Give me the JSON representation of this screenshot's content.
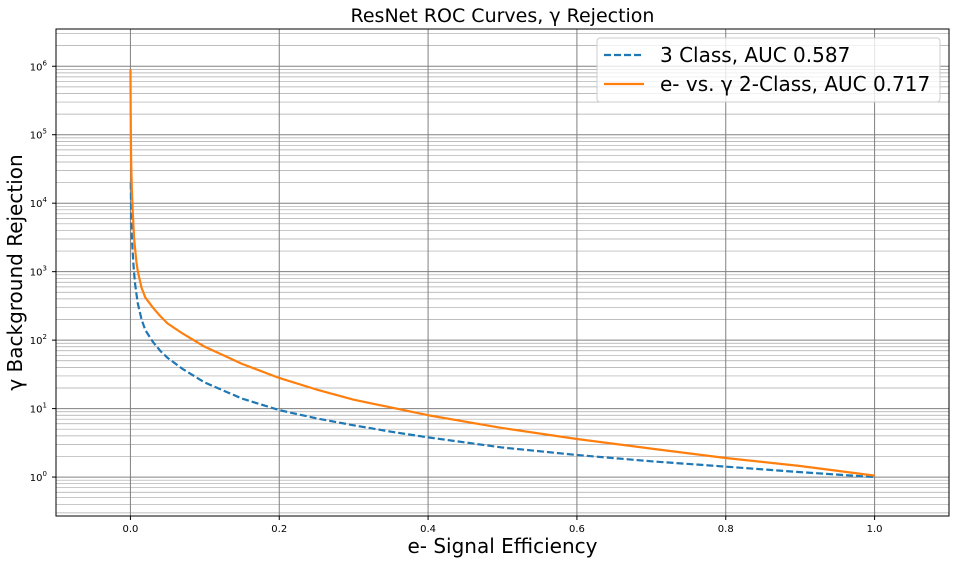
{
  "chart_data": {
    "type": "line",
    "title": "ResNet ROC Curves, γ Rejection",
    "xlabel": "e- Signal Efficiency",
    "ylabel": "γ Background Rejection",
    "xlim": [
      -0.1,
      1.1
    ],
    "ylim": [
      0.27,
      3500000
    ],
    "yscale": "log",
    "grid": true,
    "legend_position": "top-right",
    "x_ticks": [
      {
        "value": 0.0,
        "label": "0.0"
      },
      {
        "value": 0.2,
        "label": "0.2"
      },
      {
        "value": 0.4,
        "label": "0.4"
      },
      {
        "value": 0.6,
        "label": "0.6"
      },
      {
        "value": 0.8,
        "label": "0.8"
      },
      {
        "value": 1.0,
        "label": "1.0"
      }
    ],
    "y_ticks": [
      {
        "value": 1,
        "base": "10",
        "exp": "0"
      },
      {
        "value": 10,
        "base": "10",
        "exp": "1"
      },
      {
        "value": 100,
        "base": "10",
        "exp": "2"
      },
      {
        "value": 1000,
        "base": "10",
        "exp": "3"
      },
      {
        "value": 10000,
        "base": "10",
        "exp": "4"
      },
      {
        "value": 100000,
        "base": "10",
        "exp": "5"
      },
      {
        "value": 1000000,
        "base": "10",
        "exp": "6"
      }
    ],
    "series": [
      {
        "name": "3 Class, AUC 0.587",
        "color": "#1f77b4",
        "dash": "dashed",
        "points": [
          [
            0.0005,
            20000
          ],
          [
            0.001,
            8000
          ],
          [
            0.002,
            3000
          ],
          [
            0.004,
            1300
          ],
          [
            0.006,
            700
          ],
          [
            0.008,
            480
          ],
          [
            0.01,
            340
          ],
          [
            0.015,
            200
          ],
          [
            0.02,
            140
          ],
          [
            0.03,
            95
          ],
          [
            0.04,
            70
          ],
          [
            0.05,
            55
          ],
          [
            0.07,
            38
          ],
          [
            0.1,
            24
          ],
          [
            0.15,
            14
          ],
          [
            0.2,
            9.5
          ],
          [
            0.25,
            7.2
          ],
          [
            0.3,
            5.7
          ],
          [
            0.35,
            4.6
          ],
          [
            0.4,
            3.8
          ],
          [
            0.5,
            2.7
          ],
          [
            0.6,
            2.1
          ],
          [
            0.7,
            1.7
          ],
          [
            0.8,
            1.42
          ],
          [
            0.9,
            1.18
          ],
          [
            1.0,
            1.0
          ]
        ]
      },
      {
        "name": "e- vs. γ 2-Class, AUC 0.717",
        "color": "#ff7f0e",
        "dash": "solid",
        "points": [
          [
            0.0001,
            900000
          ],
          [
            0.0003,
            300000
          ],
          [
            0.0006,
            100000
          ],
          [
            0.001,
            40000
          ],
          [
            0.002,
            15000
          ],
          [
            0.003,
            8000
          ],
          [
            0.005,
            3000
          ],
          [
            0.008,
            1400
          ],
          [
            0.01,
            1000
          ],
          [
            0.015,
            580
          ],
          [
            0.02,
            420
          ],
          [
            0.03,
            300
          ],
          [
            0.04,
            225
          ],
          [
            0.05,
            175
          ],
          [
            0.07,
            125
          ],
          [
            0.1,
            80
          ],
          [
            0.15,
            45
          ],
          [
            0.2,
            28
          ],
          [
            0.25,
            19
          ],
          [
            0.3,
            13.5
          ],
          [
            0.4,
            8
          ],
          [
            0.5,
            5.2
          ],
          [
            0.6,
            3.6
          ],
          [
            0.7,
            2.6
          ],
          [
            0.8,
            1.9
          ],
          [
            0.9,
            1.45
          ],
          [
            1.0,
            1.05
          ]
        ]
      }
    ]
  }
}
